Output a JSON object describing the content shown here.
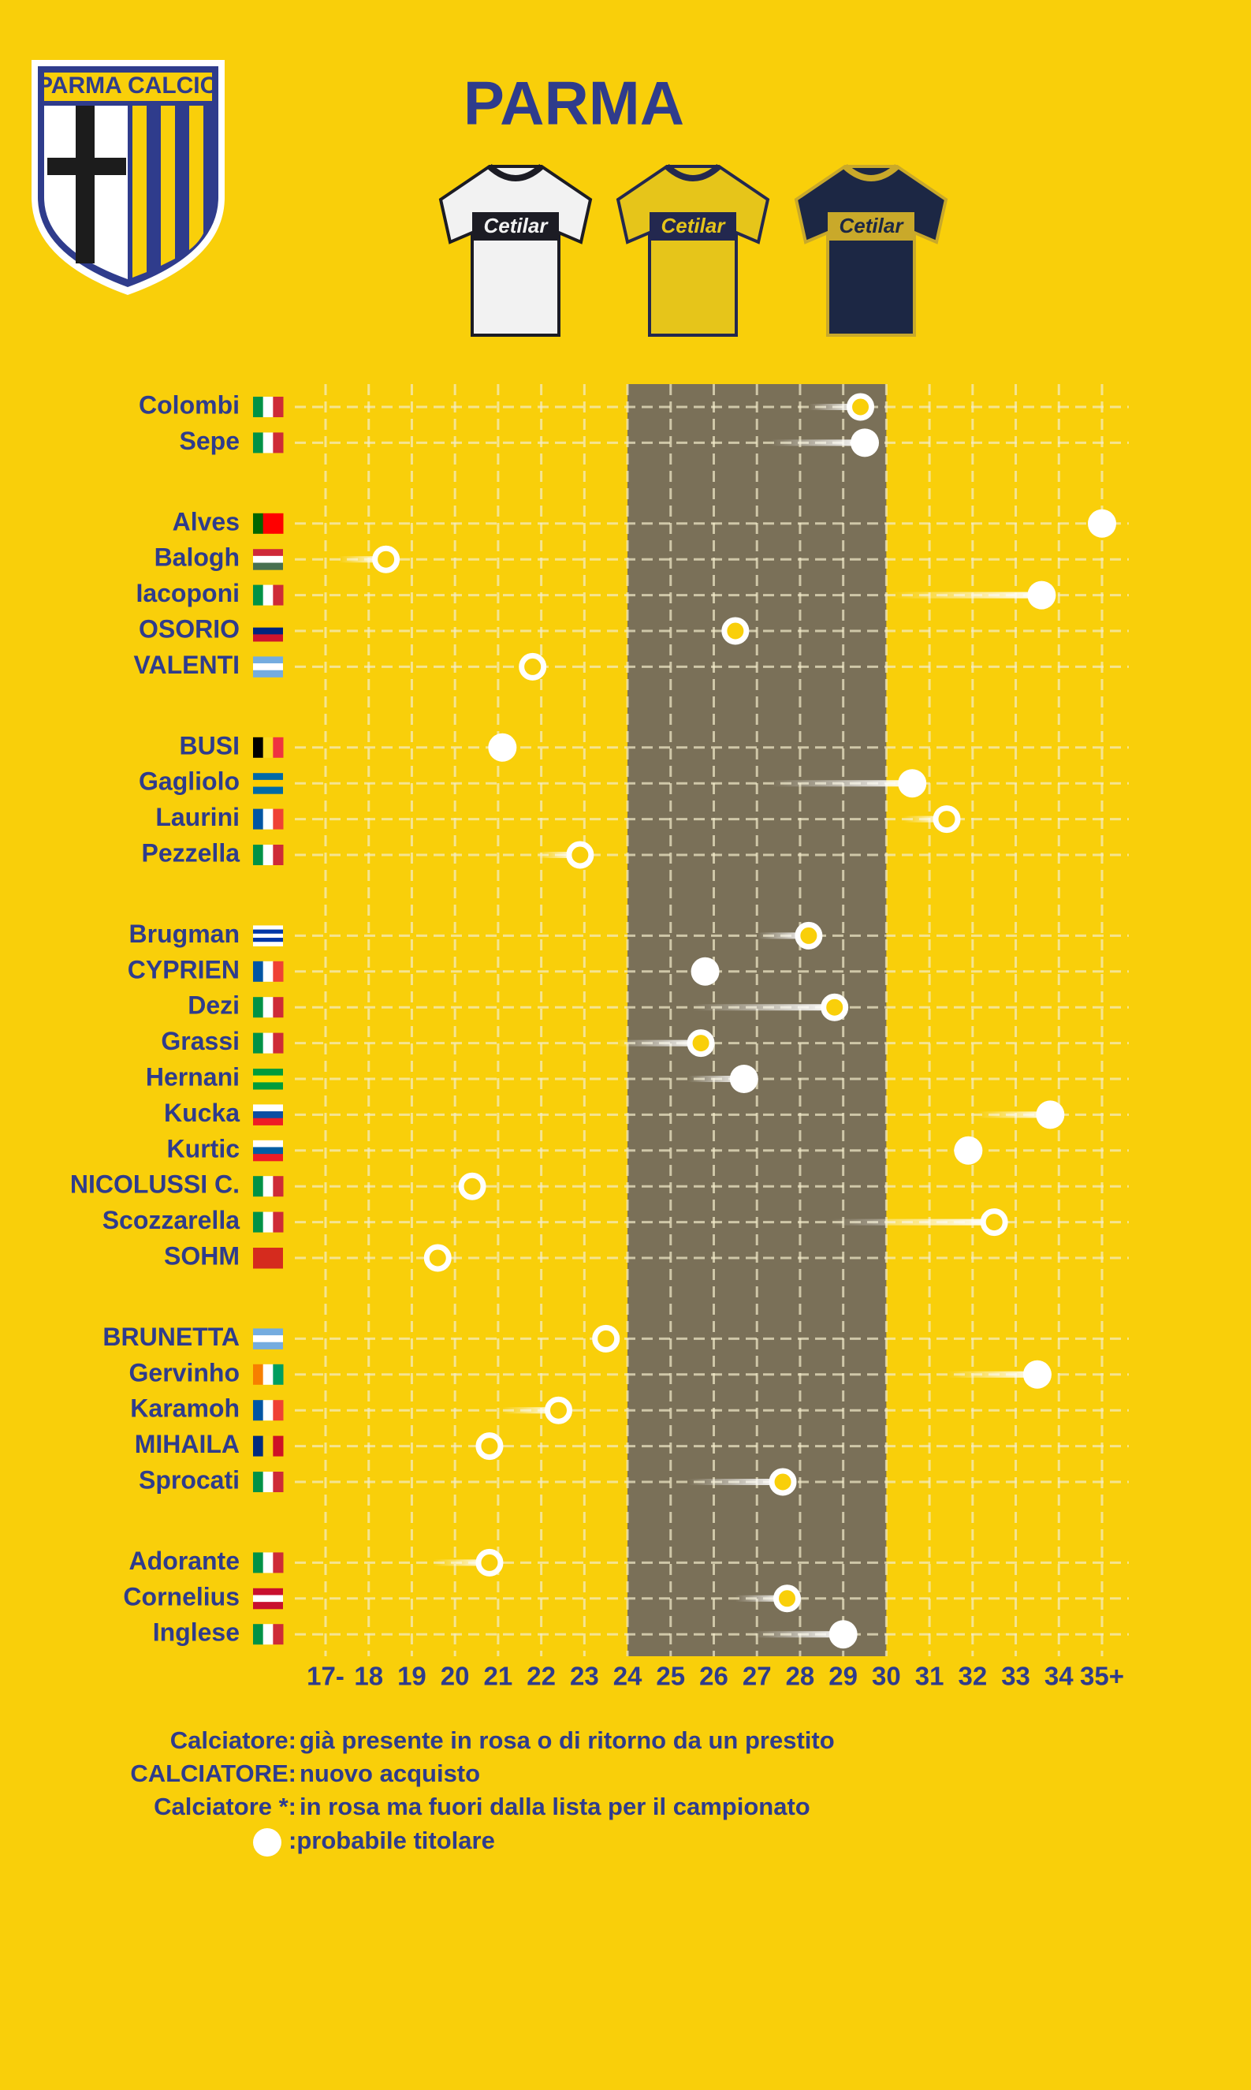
{
  "chart_data": {
    "type": "dot",
    "title": "PARMA",
    "logo": "PARMA CALCIO",
    "jerseys": [
      {
        "sponsor": "Cetilar",
        "body": "#f2f2f2",
        "accent": "#1c1c24"
      },
      {
        "sponsor": "Cetilar",
        "body": "#e6c51a",
        "accent": "#23284f"
      },
      {
        "sponsor": "Cetilar",
        "body": "#1c2744",
        "accent": "#c9a92a"
      }
    ],
    "xlim": [
      17,
      35
    ],
    "xticks": [
      {
        "value": 17,
        "label": "17-"
      },
      18,
      19,
      20,
      21,
      22,
      23,
      24,
      25,
      26,
      27,
      28,
      29,
      30,
      31,
      32,
      33,
      34,
      {
        "value": 35,
        "label": "35+"
      }
    ],
    "highlight": [
      24,
      30
    ],
    "grid": true,
    "groups": [
      [
        {
          "name": "Colombi",
          "age": 29.4,
          "from": 28.2,
          "starter": false,
          "flag": {
            "dir": "v",
            "colors": [
              "#009246",
              "#ffffff",
              "#ce2b37"
            ]
          }
        },
        {
          "name": "Sepe",
          "age": 29.5,
          "from": 27.3,
          "starter": true,
          "flag": {
            "dir": "v",
            "colors": [
              "#009246",
              "#ffffff",
              "#ce2b37"
            ]
          }
        }
      ],
      [
        {
          "name": "Alves",
          "age": 35,
          "from": null,
          "starter": true,
          "flag": {
            "dir": "v",
            "colors": [
              "#006600",
              "#ff0000",
              "#ff0000"
            ]
          }
        },
        {
          "name": "Balogh",
          "age": 18.4,
          "from": 17.3,
          "starter": false,
          "flag": {
            "dir": "h",
            "colors": [
              "#ce2939",
              "#ffffff",
              "#477050"
            ]
          }
        },
        {
          "name": "Iacoponi",
          "age": 33.6,
          "from": 30.1,
          "starter": true,
          "flag": {
            "dir": "v",
            "colors": [
              "#009246",
              "#ffffff",
              "#ce2b37"
            ]
          }
        },
        {
          "name": "OSORIO",
          "age": 26.5,
          "from": null,
          "starter": false,
          "flag": {
            "dir": "h",
            "colors": [
              "#ffcc00",
              "#00247d",
              "#cf142b"
            ]
          }
        },
        {
          "name": "VALENTI",
          "age": 21.8,
          "from": null,
          "starter": false,
          "flag": {
            "dir": "h",
            "colors": [
              "#74acdf",
              "#ffffff",
              "#74acdf"
            ]
          }
        }
      ],
      [
        {
          "name": "BUSI",
          "age": 21.1,
          "from": null,
          "starter": true,
          "flag": {
            "dir": "v",
            "colors": [
              "#000000",
              "#fdda24",
              "#ef3340"
            ]
          }
        },
        {
          "name": "Gagliolo",
          "age": 30.6,
          "from": 27.3,
          "starter": true,
          "flag": {
            "dir": "h",
            "colors": [
              "#006aa7",
              "#fecc00",
              "#006aa7"
            ]
          }
        },
        {
          "name": "Laurini",
          "age": 31.4,
          "from": 30.4,
          "starter": false,
          "flag": {
            "dir": "v",
            "colors": [
              "#0055a4",
              "#ffffff",
              "#ef4135"
            ]
          }
        },
        {
          "name": "Pezzella",
          "age": 22.9,
          "from": 21.9,
          "starter": false,
          "flag": {
            "dir": "v",
            "colors": [
              "#009246",
              "#ffffff",
              "#ce2b37"
            ]
          }
        }
      ],
      [
        {
          "name": "Brugman",
          "age": 28.2,
          "from": 27.0,
          "starter": false,
          "flag": {
            "dir": "h",
            "colors": [
              "#ffffff",
              "#0038a8",
              "#ffffff",
              "#0038a8",
              "#ffffff"
            ]
          }
        },
        {
          "name": "CYPRIEN",
          "age": 25.8,
          "from": null,
          "starter": true,
          "flag": {
            "dir": "v",
            "colors": [
              "#0055a4",
              "#ffffff",
              "#ef4135"
            ]
          }
        },
        {
          "name": "Dezi",
          "age": 28.8,
          "from": 25.5,
          "starter": false,
          "flag": {
            "dir": "v",
            "colors": [
              "#009246",
              "#ffffff",
              "#ce2b37"
            ]
          }
        },
        {
          "name": "Grassi",
          "age": 25.7,
          "from": 23.7,
          "starter": false,
          "flag": {
            "dir": "v",
            "colors": [
              "#009246",
              "#ffffff",
              "#ce2b37"
            ]
          }
        },
        {
          "name": "Hernani",
          "age": 26.7,
          "from": 25.4,
          "starter": true,
          "flag": {
            "dir": "h",
            "colors": [
              "#009c3b",
              "#ffdf00",
              "#009c3b"
            ]
          }
        },
        {
          "name": "Kucka",
          "age": 33.8,
          "from": 32.1,
          "starter": true,
          "flag": {
            "dir": "h",
            "colors": [
              "#ffffff",
              "#0b4ea2",
              "#ee1c25"
            ]
          }
        },
        {
          "name": "Kurtic",
          "age": 31.9,
          "from": null,
          "starter": true,
          "flag": {
            "dir": "h",
            "colors": [
              "#ffffff",
              "#005da4",
              "#ed1c24"
            ]
          }
        },
        {
          "name": "NICOLUSSI C.",
          "age": 20.4,
          "from": null,
          "starter": false,
          "flag": {
            "dir": "v",
            "colors": [
              "#009246",
              "#ffffff",
              "#ce2b37"
            ]
          }
        },
        {
          "name": "Scozzarella",
          "age": 32.5,
          "from": 28.7,
          "starter": false,
          "flag": {
            "dir": "v",
            "colors": [
              "#009246",
              "#ffffff",
              "#ce2b37"
            ]
          }
        },
        {
          "name": "SOHM",
          "age": 19.6,
          "from": null,
          "starter": false,
          "flag": {
            "dir": "h",
            "colors": [
              "#d52b1e"
            ]
          }
        }
      ],
      [
        {
          "name": "BRUNETTA",
          "age": 23.5,
          "from": null,
          "starter": false,
          "flag": {
            "dir": "h",
            "colors": [
              "#74acdf",
              "#ffffff",
              "#74acdf"
            ]
          }
        },
        {
          "name": "Gervinho",
          "age": 33.5,
          "from": 31.4,
          "starter": true,
          "flag": {
            "dir": "v",
            "colors": [
              "#f77f00",
              "#ffffff",
              "#009e60"
            ]
          }
        },
        {
          "name": "Karamoh",
          "age": 22.4,
          "from": 21.1,
          "starter": false,
          "flag": {
            "dir": "v",
            "colors": [
              "#0055a4",
              "#ffffff",
              "#ef4135"
            ]
          }
        },
        {
          "name": "MIHAILA",
          "age": 20.8,
          "from": null,
          "starter": false,
          "flag": {
            "dir": "v",
            "colors": [
              "#002b7f",
              "#fcd116",
              "#ce1126"
            ]
          }
        },
        {
          "name": "Sprocati",
          "age": 27.6,
          "from": 25.4,
          "starter": false,
          "flag": {
            "dir": "v",
            "colors": [
              "#009246",
              "#ffffff",
              "#ce2b37"
            ]
          }
        }
      ],
      [
        {
          "name": "Adorante",
          "age": 20.8,
          "from": 19.5,
          "starter": false,
          "flag": {
            "dir": "v",
            "colors": [
              "#009246",
              "#ffffff",
              "#ce2b37"
            ]
          }
        },
        {
          "name": "Cornelius",
          "age": 27.7,
          "from": 26.5,
          "starter": false,
          "flag": {
            "dir": "h",
            "colors": [
              "#c8102e",
              "#ffffff",
              "#c8102e"
            ]
          }
        },
        {
          "name": "Inglese",
          "age": 29.0,
          "from": 26.9,
          "starter": true,
          "flag": {
            "dir": "v",
            "colors": [
              "#009246",
              "#ffffff",
              "#ce2b37"
            ]
          }
        }
      ]
    ],
    "legend": [
      {
        "key": "Calciatore:",
        "text": "già presente in rosa o di ritorno da un prestito"
      },
      {
        "key": "CALCIATORE:",
        "text": "nuovo acquisto"
      },
      {
        "key": "Calciatore *:",
        "text": "in rosa ma fuori dalla lista per il campionato"
      },
      {
        "text": ":probabile titolare"
      }
    ]
  }
}
